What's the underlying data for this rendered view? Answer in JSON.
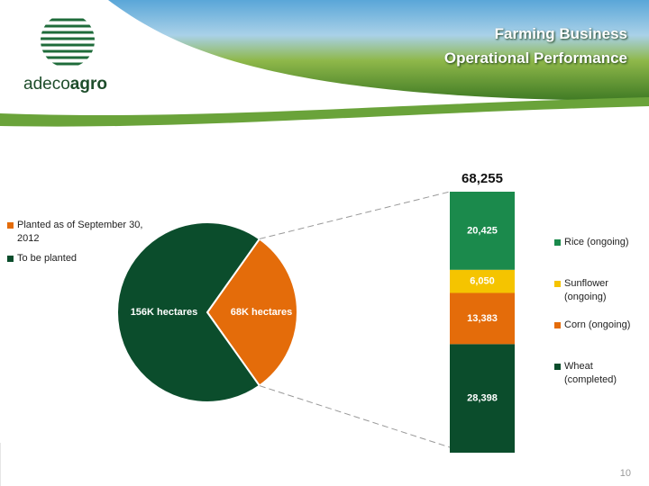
{
  "header": {
    "title": [
      "Farming Business",
      "Operational Performance"
    ],
    "logo": [
      "adeco",
      "agro"
    ]
  },
  "page_number": "10",
  "chart_data": [
    {
      "type": "pie",
      "categories": [
        "Planted as of September 30, 2012",
        "To be planted"
      ],
      "values": [
        68,
        156
      ],
      "value_labels": [
        "68K hectares",
        "156K hectares"
      ],
      "colors": [
        "#e46c0a",
        "#0b4d2c"
      ],
      "legend": "left"
    },
    {
      "type": "bar",
      "stacked": true,
      "total": 68255,
      "total_label": "68,255",
      "series": [
        {
          "name": "Wheat (completed)",
          "color": "#0b4d2c",
          "values": [
            28398
          ],
          "value_labels": [
            "28,398"
          ]
        },
        {
          "name": "Corn (ongoing)",
          "color": "#e46c0a",
          "values": [
            13383
          ],
          "value_labels": [
            "13,383"
          ]
        },
        {
          "name": "Sunflower (ongoing)",
          "color": "#f5c400",
          "values": [
            6050
          ],
          "value_labels": [
            "6,050"
          ]
        },
        {
          "name": "Rice (ongoing)",
          "color": "#1b8a4c",
          "values": [
            20425
          ],
          "value_labels": [
            "20,425"
          ]
        }
      ],
      "legend": "right"
    }
  ]
}
